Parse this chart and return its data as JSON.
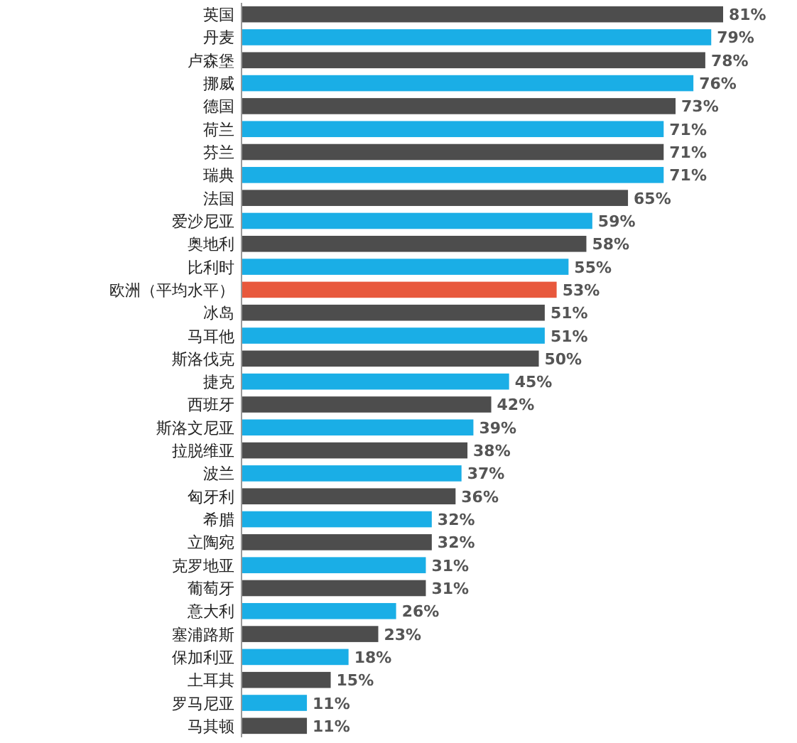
{
  "chart_data": {
    "type": "bar",
    "orientation": "horizontal",
    "categories": [
      "英国",
      "丹麦",
      "卢森堡",
      "挪威",
      "德国",
      "荷兰",
      "芬兰",
      "瑞典",
      "法国",
      "爱沙尼亚",
      "奥地利",
      "比利时",
      "欧洲（平均水平）",
      "冰岛",
      "马耳他",
      "斯洛伐克",
      "捷克",
      "西班牙",
      "斯洛文尼亚",
      "拉脱维亚",
      "波兰",
      "匈牙利",
      "希腊",
      "立陶宛",
      "克罗地亚",
      "葡萄牙",
      "意大利",
      "塞浦路斯",
      "保加利亚",
      "土耳其",
      "罗马尼亚",
      "马其顿"
    ],
    "values": [
      81,
      79,
      78,
      76,
      73,
      71,
      71,
      71,
      65,
      59,
      58,
      55,
      53,
      51,
      51,
      50,
      45,
      42,
      39,
      38,
      37,
      36,
      32,
      32,
      31,
      31,
      26,
      23,
      18,
      15,
      11,
      11
    ],
    "value_labels": [
      "81%",
      "79%",
      "78%",
      "76%",
      "73%",
      "71%",
      "71%",
      "71%",
      "65%",
      "59%",
      "58%",
      "55%",
      "53%",
      "51%",
      "51%",
      "50%",
      "45%",
      "42%",
      "39%",
      "38%",
      "37%",
      "36%",
      "32%",
      "32%",
      "31%",
      "31%",
      "26%",
      "23%",
      "18%",
      "15%",
      "11%",
      "11%"
    ],
    "colors": [
      "#4d4d4d",
      "#1aaee6",
      "#4d4d4d",
      "#1aaee6",
      "#4d4d4d",
      "#1aaee6",
      "#4d4d4d",
      "#1aaee6",
      "#4d4d4d",
      "#1aaee6",
      "#4d4d4d",
      "#1aaee6",
      "#e8583c",
      "#4d4d4d",
      "#1aaee6",
      "#4d4d4d",
      "#1aaee6",
      "#4d4d4d",
      "#1aaee6",
      "#4d4d4d",
      "#1aaee6",
      "#4d4d4d",
      "#1aaee6",
      "#4d4d4d",
      "#1aaee6",
      "#4d4d4d",
      "#1aaee6",
      "#4d4d4d",
      "#1aaee6",
      "#4d4d4d",
      "#1aaee6",
      "#4d4d4d"
    ]
  }
}
